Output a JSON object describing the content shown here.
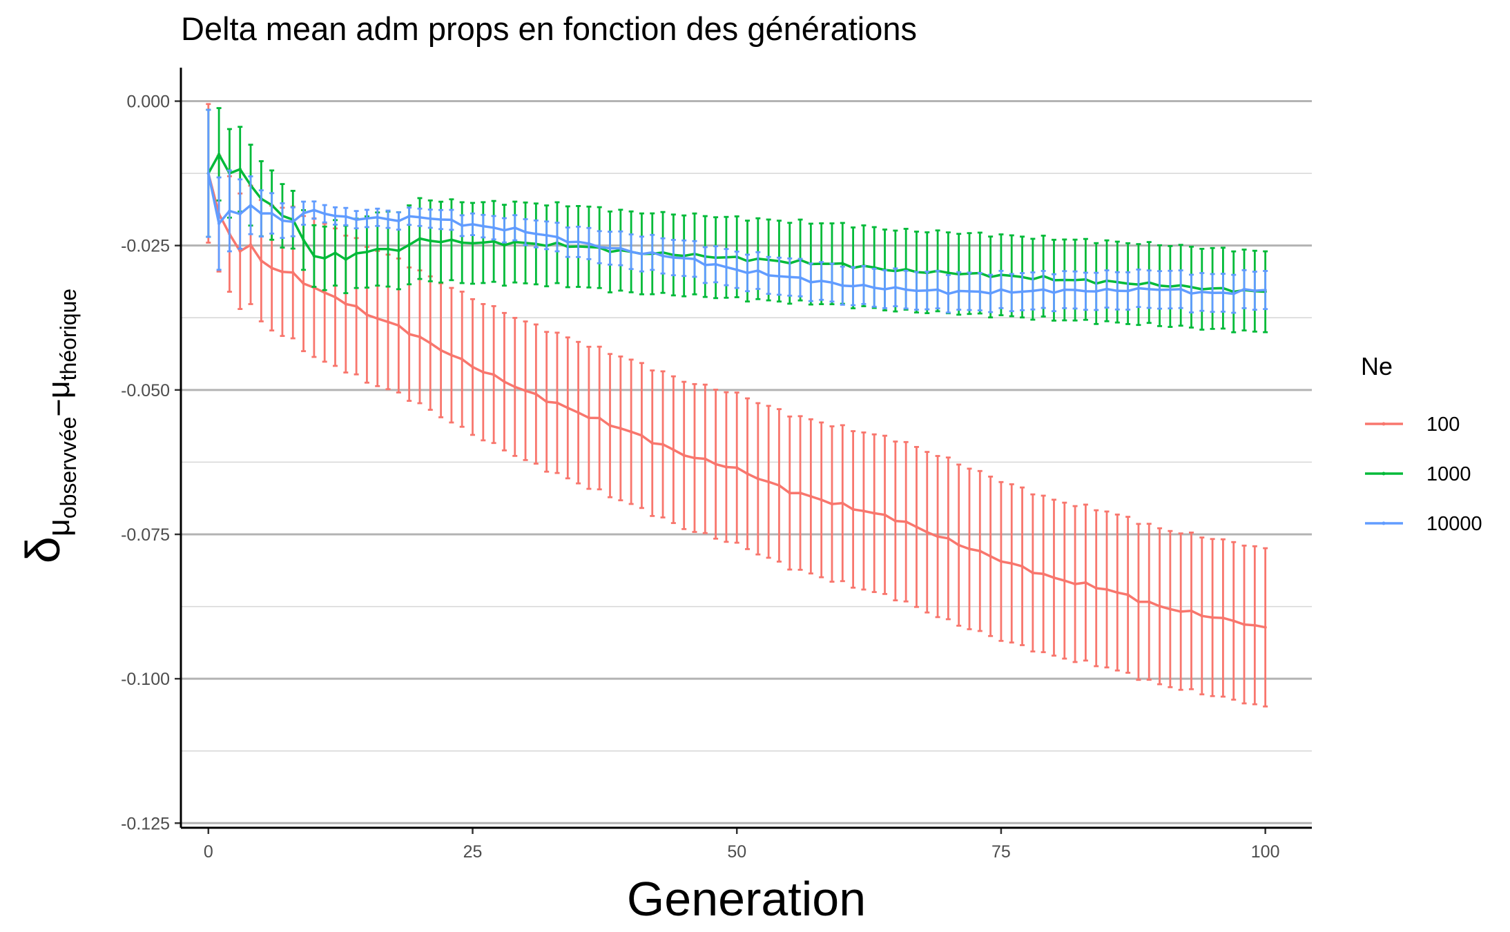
{
  "chart_data": {
    "type": "line",
    "title": "Delta mean adm props en fonction des générations",
    "xlabel": "Generation",
    "ylabel": {
      "main": "δ",
      "sub1": "μ",
      "sub1_sub": "observvée",
      "minus": "−",
      "sub2": "μ",
      "sub2_sub": "théorique"
    },
    "xlim": [
      -2.6,
      104.4
    ],
    "ylim": [
      -0.1258,
      0.0058
    ],
    "x_ticks": [
      0,
      25,
      50,
      75,
      100
    ],
    "x_tick_labels": [
      "0",
      "25",
      "50",
      "75",
      "100"
    ],
    "y_ticks": [
      0,
      -0.025,
      -0.05,
      -0.075,
      -0.1,
      -0.125
    ],
    "y_tick_labels": [
      "0.000",
      "-0.025",
      "-0.050",
      "-0.075",
      "-0.100",
      "-0.125"
    ],
    "legend": {
      "title": "Ne",
      "placement": "right"
    },
    "grid": true,
    "series": [
      {
        "name": "100",
        "color": "#F8766D",
        "anchors": [
          [
            0,
            -0.0125
          ],
          [
            1,
            -0.0195
          ],
          [
            2,
            -0.023
          ],
          [
            3,
            -0.0258
          ],
          [
            4,
            -0.0252
          ],
          [
            5,
            -0.0275
          ],
          [
            6,
            -0.0288
          ],
          [
            7,
            -0.0296
          ],
          [
            8,
            -0.0299
          ],
          [
            10,
            -0.0325
          ],
          [
            12,
            -0.0339
          ],
          [
            14,
            -0.0359
          ],
          [
            16,
            -0.0376
          ],
          [
            18,
            -0.039
          ],
          [
            20,
            -0.041
          ],
          [
            25,
            -0.0459
          ],
          [
            30,
            -0.0502
          ],
          [
            35,
            -0.0539
          ],
          [
            40,
            -0.0573
          ],
          [
            45,
            -0.0612
          ],
          [
            50,
            -0.0637
          ],
          [
            55,
            -0.0675
          ],
          [
            60,
            -0.07
          ],
          [
            65,
            -0.0723
          ],
          [
            70,
            -0.076
          ],
          [
            75,
            -0.0795
          ],
          [
            80,
            -0.0826
          ],
          [
            85,
            -0.0845
          ],
          [
            90,
            -0.0875
          ],
          [
            95,
            -0.0893
          ],
          [
            100,
            -0.0911
          ]
        ],
        "error_anchors": [
          [
            0,
            0.012
          ],
          [
            1,
            0.01
          ],
          [
            3,
            0.01
          ],
          [
            5,
            0.0105
          ],
          [
            10,
            0.012
          ],
          [
            20,
            0.0115
          ],
          [
            30,
            0.012
          ],
          [
            40,
            0.0125
          ],
          [
            50,
            0.013
          ],
          [
            60,
            0.0135
          ],
          [
            70,
            0.014
          ],
          [
            80,
            0.0135
          ],
          [
            90,
            0.0135
          ],
          [
            100,
            0.0137
          ]
        ],
        "noise": 0.0004
      },
      {
        "name": "1000",
        "color": "#00BA38",
        "anchors": [
          [
            0,
            -0.0125
          ],
          [
            1,
            -0.0092
          ],
          [
            2,
            -0.0125
          ],
          [
            3,
            -0.0118
          ],
          [
            4,
            -0.0148
          ],
          [
            5,
            -0.0165
          ],
          [
            6,
            -0.0182
          ],
          [
            7,
            -0.0199
          ],
          [
            8,
            -0.0205
          ],
          [
            9,
            -0.0238
          ],
          [
            10,
            -0.0272
          ],
          [
            11,
            -0.027
          ],
          [
            12,
            -0.0262
          ],
          [
            13,
            -0.0275
          ],
          [
            14,
            -0.0265
          ],
          [
            15,
            -0.0258
          ],
          [
            18,
            -0.0257
          ],
          [
            20,
            -0.024
          ],
          [
            25,
            -0.0245
          ],
          [
            30,
            -0.0246
          ],
          [
            35,
            -0.0251
          ],
          [
            40,
            -0.0262
          ],
          [
            45,
            -0.0266
          ],
          [
            50,
            -0.0272
          ],
          [
            55,
            -0.0278
          ],
          [
            60,
            -0.0283
          ],
          [
            65,
            -0.0293
          ],
          [
            70,
            -0.0297
          ],
          [
            75,
            -0.0302
          ],
          [
            80,
            -0.0308
          ],
          [
            85,
            -0.0313
          ],
          [
            90,
            -0.0318
          ],
          [
            95,
            -0.0325
          ],
          [
            100,
            -0.033
          ]
        ],
        "error_anchors": [
          [
            0,
            0.011
          ],
          [
            1,
            0.008
          ],
          [
            4,
            0.007
          ],
          [
            8,
            0.005
          ],
          [
            20,
            0.007
          ],
          [
            40,
            0.007
          ],
          [
            60,
            0.007
          ],
          [
            80,
            0.007
          ],
          [
            100,
            0.007
          ]
        ],
        "noise": 0.0004
      },
      {
        "name": "10000",
        "color": "#619CFF",
        "anchors": [
          [
            0,
            -0.0125
          ],
          [
            1,
            -0.0212
          ],
          [
            2,
            -0.019
          ],
          [
            3,
            -0.0196
          ],
          [
            4,
            -0.018
          ],
          [
            5,
            -0.0192
          ],
          [
            6,
            -0.0198
          ],
          [
            7,
            -0.0205
          ],
          [
            8,
            -0.0208
          ],
          [
            9,
            -0.0195
          ],
          [
            10,
            -0.019
          ],
          [
            11,
            -0.0192
          ],
          [
            12,
            -0.02
          ],
          [
            14,
            -0.0203
          ],
          [
            16,
            -0.0203
          ],
          [
            18,
            -0.0205
          ],
          [
            20,
            -0.02
          ],
          [
            22,
            -0.0205
          ],
          [
            25,
            -0.0215
          ],
          [
            30,
            -0.0225
          ],
          [
            35,
            -0.0245
          ],
          [
            40,
            -0.026
          ],
          [
            45,
            -0.0272
          ],
          [
            50,
            -0.0292
          ],
          [
            55,
            -0.0305
          ],
          [
            60,
            -0.0318
          ],
          [
            65,
            -0.0325
          ],
          [
            70,
            -0.033
          ],
          [
            75,
            -0.033
          ],
          [
            80,
            -0.0328
          ],
          [
            85,
            -0.0328
          ],
          [
            90,
            -0.0325
          ],
          [
            95,
            -0.0333
          ],
          [
            100,
            -0.0327
          ]
        ],
        "error_anchors": [
          [
            0,
            0.011
          ],
          [
            1,
            0.008
          ],
          [
            5,
            0.004
          ],
          [
            10,
            0.0015
          ],
          [
            20,
            0.0015
          ],
          [
            40,
            0.003
          ],
          [
            60,
            0.0033
          ],
          [
            80,
            0.0032
          ],
          [
            100,
            0.0033
          ]
        ],
        "noise": 0.0004
      }
    ]
  }
}
